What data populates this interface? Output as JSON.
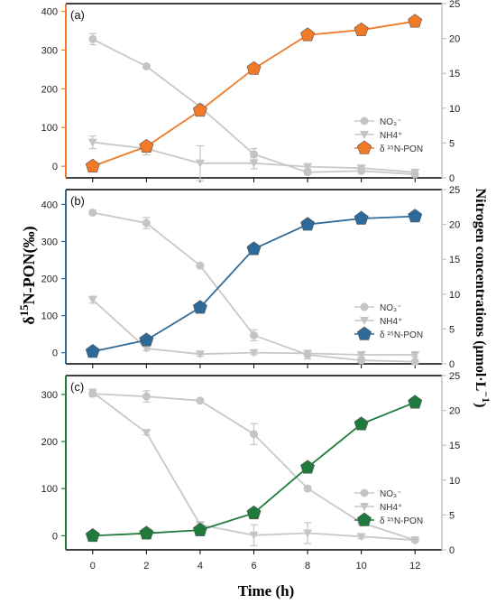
{
  "x_axis": {
    "label": "Time (h)",
    "ticks": [
      0,
      2,
      4,
      6,
      8,
      10,
      12
    ]
  },
  "left_axis_title": "δ15N-PON(‰)",
  "right_axis_title": "Nitrogen concentrations (μmol·L−1)",
  "colors": {
    "grey": "#c4c4c4",
    "grey_line": "#c8c8c8",
    "frame": "#000000"
  },
  "chart_data": [
    {
      "type": "line",
      "panel": "(a)",
      "accent": "#f07a28",
      "x": [
        0,
        2,
        4,
        6,
        8,
        10,
        12
      ],
      "ylim_left": [
        -30,
        420
      ],
      "left_ticks": [
        0,
        100,
        200,
        300,
        400
      ],
      "ylim_right": [
        0,
        25
      ],
      "right_ticks": [
        0,
        5,
        10,
        15,
        20,
        25
      ],
      "series": [
        {
          "name": "NO3-",
          "axis": "right",
          "marker": "circle",
          "values": [
            19.9,
            16,
            10.2,
            3.4,
            0.8,
            1,
            0.5
          ],
          "err": [
            0.8,
            0.3,
            0.3,
            0.8,
            0.3,
            0.3,
            0.2
          ]
        },
        {
          "name": "NH4+",
          "axis": "right",
          "marker": "triangle",
          "values": [
            5.1,
            4.2,
            2.1,
            2.1,
            1.6,
            1.4,
            0.8
          ],
          "err": [
            0.9,
            0.9,
            2.5,
            0.8,
            0.3,
            0.3,
            0.3
          ]
        },
        {
          "name": "δ 15N-PON",
          "axis": "left",
          "marker": "pentagon",
          "values": [
            0,
            51,
            144,
            252,
            339,
            352,
            374
          ],
          "err": [
            0,
            0,
            0,
            0,
            0,
            0,
            0
          ]
        }
      ],
      "legend": [
        "NO3-",
        "NH4+",
        "δ 15N-PON"
      ]
    },
    {
      "type": "line",
      "panel": "(b)",
      "accent": "#2e6a99",
      "x": [
        0,
        2,
        4,
        6,
        8,
        10,
        12
      ],
      "ylim_left": [
        -30,
        440
      ],
      "left_ticks": [
        0,
        100,
        200,
        300,
        400
      ],
      "ylim_right": [
        0,
        25
      ],
      "right_ticks": [
        0,
        5,
        10,
        15,
        20,
        25
      ],
      "series": [
        {
          "name": "NO3-",
          "axis": "right",
          "marker": "circle",
          "values": [
            21.7,
            20.2,
            14.1,
            4.1,
            1.3,
            0.5,
            0.3
          ],
          "err": [
            0.3,
            0.8,
            0.2,
            0.8,
            0.6,
            0.3,
            0.2
          ]
        },
        {
          "name": "NH4+",
          "axis": "right",
          "marker": "triangle",
          "values": [
            9.2,
            2.2,
            1.4,
            1.6,
            1.5,
            1.3,
            1.3
          ],
          "err": [
            0.5,
            0.3,
            0.3,
            0.3,
            0.3,
            0.3,
            0.3
          ]
        },
        {
          "name": "δ 15N-PON",
          "axis": "left",
          "marker": "pentagon",
          "values": [
            3,
            34,
            122,
            280,
            346,
            362,
            368
          ],
          "err": [
            0,
            0,
            0,
            0,
            0,
            0,
            0
          ]
        }
      ],
      "legend": [
        "NO3-",
        "NH4+",
        "δ 15N-PON"
      ]
    },
    {
      "type": "line",
      "panel": "(c)",
      "accent": "#1f7a3c",
      "x": [
        0,
        2,
        4,
        6,
        8,
        10,
        12
      ],
      "ylim_left": [
        -30,
        340
      ],
      "left_ticks": [
        0,
        100,
        200,
        300
      ],
      "ylim_right": [
        0,
        25
      ],
      "right_ticks": [
        0,
        5,
        10,
        15,
        20,
        25
      ],
      "series": [
        {
          "name": "NO3-",
          "axis": "right",
          "marker": "circle",
          "values": [
            22.4,
            22,
            21.4,
            16.6,
            8.8,
            3.9,
            1.4
          ],
          "err": [
            0.4,
            0.8,
            0.2,
            1.5,
            0.3,
            0.3,
            0.2
          ]
        },
        {
          "name": "NH4+",
          "axis": "right",
          "marker": "triangle",
          "values": [
            22.6,
            16.8,
            3.6,
            2.1,
            2.4,
            1.9,
            1.4
          ],
          "err": [
            0.4,
            0.3,
            0.3,
            1.5,
            1.5,
            0.3,
            0.2
          ]
        },
        {
          "name": "δ 15N-PON",
          "axis": "left",
          "marker": "pentagon",
          "values": [
            0,
            5,
            12,
            48,
            145,
            237,
            283
          ],
          "err": [
            0,
            0,
            0,
            0,
            0,
            0,
            0
          ]
        }
      ],
      "legend": [
        "NO3-",
        "NH4+",
        "δ 15N-PON"
      ]
    }
  ]
}
